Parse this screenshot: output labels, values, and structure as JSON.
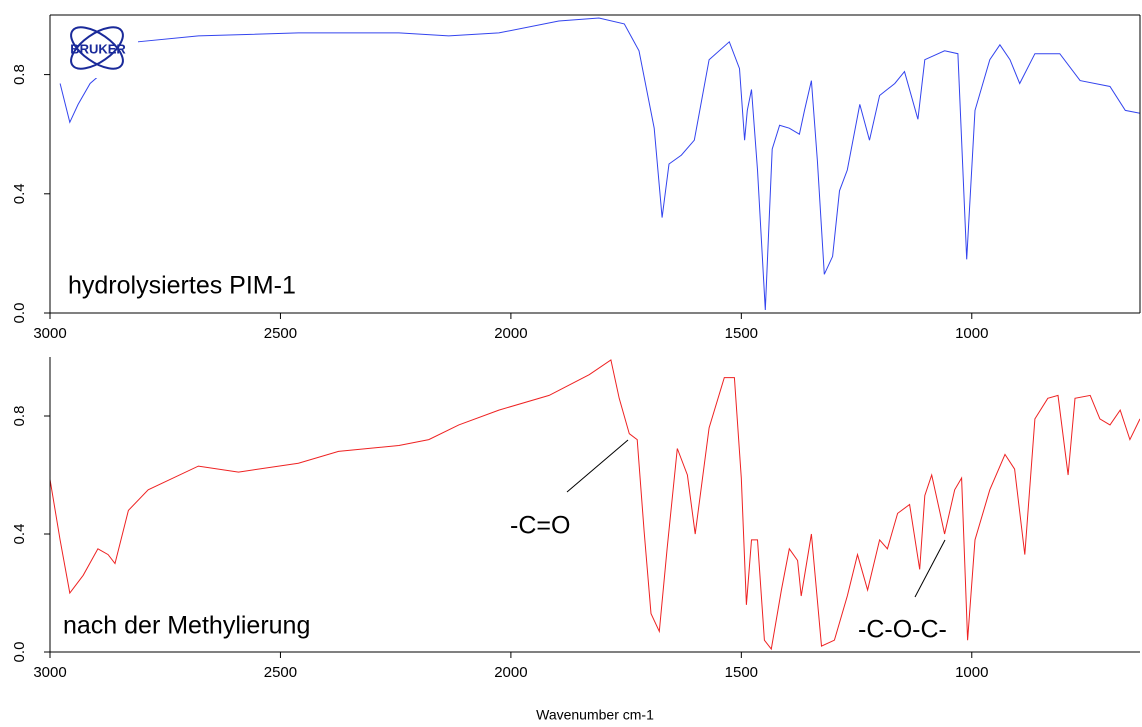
{
  "logo": "BRUKER",
  "chart_data": [
    {
      "type": "line",
      "annotations": [
        "hydrolysiertes PIM-1"
      ],
      "xlim": [
        3000,
        635
      ],
      "xticks": [
        3000,
        2500,
        2000,
        1500,
        1000
      ],
      "ylim": [
        0,
        1.0
      ],
      "yticks": [
        {
          "value": 0,
          "label": "0.0"
        },
        0.4,
        0.8
      ],
      "series": [
        {
          "color": "#3344ee",
          "x": [
            2978,
            2957,
            2939,
            2913,
            2809,
            2678,
            2461,
            2243,
            2135,
            2026,
            1896,
            1809,
            1754,
            1722,
            1689,
            1672,
            1657,
            1630,
            1602,
            1570,
            1526,
            1504,
            1493,
            1487,
            1478,
            1465,
            1448,
            1433,
            1417,
            1396,
            1374,
            1363,
            1348,
            1335,
            1320,
            1302,
            1287,
            1270,
            1243,
            1222,
            1200,
            1167,
            1146,
            1117,
            1102,
            1059,
            1030,
            1011,
            993,
            961,
            939,
            917,
            896,
            863,
            809,
            765,
            700,
            667,
            635
          ],
          "values": [
            0.77,
            0.64,
            0.7,
            0.77,
            0.91,
            0.93,
            0.94,
            0.94,
            0.93,
            0.94,
            0.98,
            0.99,
            0.97,
            0.88,
            0.62,
            0.32,
            0.5,
            0.53,
            0.58,
            0.85,
            0.91,
            0.82,
            0.58,
            0.68,
            0.75,
            0.48,
            0.01,
            0.55,
            0.63,
            0.62,
            0.6,
            0.68,
            0.78,
            0.51,
            0.13,
            0.19,
            0.41,
            0.48,
            0.7,
            0.58,
            0.73,
            0.77,
            0.81,
            0.65,
            0.85,
            0.88,
            0.87,
            0.18,
            0.68,
            0.85,
            0.9,
            0.85,
            0.77,
            0.87,
            0.87,
            0.78,
            0.76,
            0.68,
            0.67
          ]
        }
      ]
    },
    {
      "type": "line",
      "xlabel": "Wavenumber cm-1",
      "annotations": [
        "nach der Methylierung",
        "-C=O",
        "-C-O-C-"
      ],
      "xlim": [
        3000,
        635
      ],
      "xticks": [
        3000,
        2500,
        2000,
        1500,
        1000
      ],
      "ylim": [
        0,
        1.0
      ],
      "yticks": [
        {
          "value": 0,
          "label": "0.0"
        },
        0.4,
        0.8
      ],
      "series": [
        {
          "color": "#ee2222",
          "x": [
            3000,
            2978,
            2957,
            2928,
            2896,
            2874,
            2859,
            2830,
            2787,
            2678,
            2591,
            2461,
            2374,
            2243,
            2178,
            2113,
            2026,
            1917,
            1830,
            1783,
            1765,
            1743,
            1726,
            1711,
            1696,
            1678,
            1661,
            1639,
            1617,
            1600,
            1570,
            1537,
            1515,
            1500,
            1489,
            1478,
            1465,
            1450,
            1435,
            1413,
            1396,
            1378,
            1370,
            1348,
            1326,
            1298,
            1270,
            1248,
            1226,
            1200,
            1183,
            1161,
            1135,
            1113,
            1102,
            1087,
            1070,
            1059,
            1037,
            1022,
            1009,
            993,
            961,
            928,
            907,
            885,
            863,
            835,
            813,
            791,
            776,
            743,
            722,
            700,
            678,
            657,
            635
          ],
          "values": [
            0.585,
            0.38,
            0.2,
            0.26,
            0.35,
            0.33,
            0.3,
            0.48,
            0.55,
            0.63,
            0.61,
            0.64,
            0.68,
            0.7,
            0.72,
            0.77,
            0.82,
            0.87,
            0.94,
            0.99,
            0.86,
            0.74,
            0.72,
            0.41,
            0.13,
            0.07,
            0.35,
            0.69,
            0.6,
            0.4,
            0.76,
            0.93,
            0.93,
            0.59,
            0.16,
            0.38,
            0.38,
            0.04,
            0.01,
            0.21,
            0.35,
            0.31,
            0.19,
            0.4,
            0.02,
            0.04,
            0.19,
            0.33,
            0.21,
            0.38,
            0.35,
            0.47,
            0.5,
            0.28,
            0.53,
            0.6,
            0.48,
            0.4,
            0.55,
            0.59,
            0.04,
            0.38,
            0.55,
            0.67,
            0.62,
            0.33,
            0.79,
            0.86,
            0.87,
            0.6,
            0.86,
            0.87,
            0.79,
            0.77,
            0.82,
            0.72,
            0.79
          ]
        }
      ]
    }
  ]
}
